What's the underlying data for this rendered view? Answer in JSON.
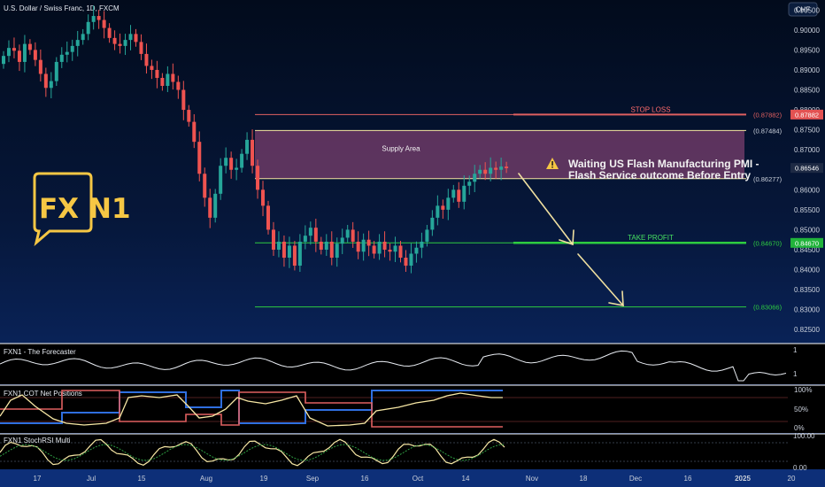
{
  "header": {
    "symbol": "U.S. Dollar / Swiss Franc, 1D, FXCM",
    "currency_button": "CHF"
  },
  "logo": {
    "text_fx": "FX",
    "text_n1": "N1"
  },
  "chart_data": {
    "type": "candlestick",
    "price_axis": {
      "ylim": [
        0.8215,
        0.9075
      ],
      "ticks": [
        "0.90500",
        "0.90000",
        "0.89500",
        "0.89000",
        "0.88500",
        "0.88000",
        "0.87500",
        "0.87000",
        "0.86500",
        "0.86000",
        "0.85500",
        "0.85000",
        "0.84500",
        "0.84000",
        "0.83500",
        "0.83000",
        "0.82500"
      ]
    },
    "time_axis": [
      "17",
      "Jul",
      "15",
      "Aug",
      "19",
      "Sep",
      "16",
      "Oct",
      "14",
      "Nov",
      "18",
      "Dec",
      "16",
      "2025",
      "20"
    ],
    "closes": [
      0.8935,
      0.8955,
      0.8948,
      0.892,
      0.8965,
      0.895,
      0.8925,
      0.889,
      0.8855,
      0.8872,
      0.892,
      0.8938,
      0.8945,
      0.896,
      0.8975,
      0.899,
      0.902,
      0.9035,
      0.9025,
      0.9005,
      0.898,
      0.8965,
      0.896,
      0.8975,
      0.899,
      0.897,
      0.894,
      0.891,
      0.89,
      0.888,
      0.886,
      0.889,
      0.887,
      0.885,
      0.88,
      0.877,
      0.872,
      0.864,
      0.858,
      0.853,
      0.859,
      0.866,
      0.868,
      0.865,
      0.8655,
      0.869,
      0.8725,
      0.866,
      0.86,
      0.856,
      0.85,
      0.845,
      0.847,
      0.843,
      0.846,
      0.841,
      0.847,
      0.8485,
      0.8505,
      0.847,
      0.845,
      0.847,
      0.843,
      0.8465,
      0.848,
      0.85,
      0.847,
      0.8445,
      0.8475,
      0.846,
      0.844,
      0.847,
      0.845,
      0.8445,
      0.846,
      0.843,
      0.841,
      0.844,
      0.8455,
      0.847,
      0.85,
      0.853,
      0.856,
      0.855,
      0.858,
      0.86,
      0.857,
      0.861,
      0.862,
      0.864,
      0.865,
      0.864,
      0.8655,
      0.865,
      0.8658,
      0.8654
    ],
    "zones": {
      "supply_area": {
        "top": 0.87484,
        "bottom": 0.86277,
        "label": "Supply Area"
      },
      "stop_loss": {
        "value": 0.87882,
        "label": "STOP LOSS",
        "tag": "(0.87882)",
        "badge": "0.87882"
      },
      "supply_top_tag": "(0.87484)",
      "supply_bottom_tag": "(0.86277)",
      "take_profit": {
        "value": 0.8467,
        "label": "TAKE PROFIT",
        "tag": "(0.84670)",
        "badge": "0.84670"
      },
      "target2": {
        "value": 0.83066,
        "tag": "(0.83066)"
      },
      "last_price_badge": "0.86546"
    },
    "annotation": {
      "line1": "Waiting US Flash Manufacturing PMI -",
      "line2": "Flash Service outcome Before Entry"
    },
    "indicators": [
      {
        "name": "FXN1 - The Forecaster",
        "ticks": [
          "1",
          "1"
        ]
      },
      {
        "name": "FXN1 COT Net Positions",
        "ticks": [
          "100%",
          "50%",
          "0%"
        ]
      },
      {
        "name": "FXN1 StochRSI Multi",
        "ticks": [
          "100.00",
          "0.00"
        ]
      }
    ],
    "colors": {
      "up": "#26a69a",
      "down": "#ef5350",
      "zone": "#7a3f6e",
      "take_profit": "#2ecc40",
      "stop_loss": "#e06060",
      "arrow": "#f0e0a0"
    }
  }
}
